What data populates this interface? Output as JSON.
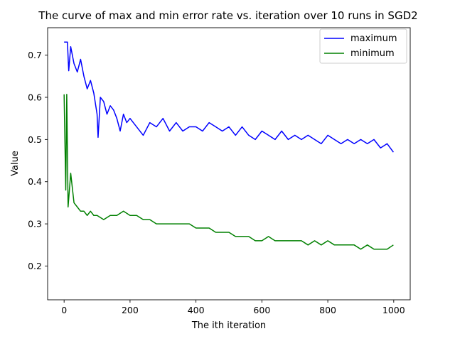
{
  "chart_data": {
    "type": "line",
    "title": "The curve of max and min error rate vs. iteration over 10 runs in SGD2",
    "xlabel": "The ith iteration",
    "ylabel": "Value",
    "xlim": [
      -50,
      1050
    ],
    "ylim": [
      0.12,
      0.765
    ],
    "x_ticks": [
      0,
      200,
      400,
      600,
      800,
      1000
    ],
    "y_ticks": [
      0.2,
      0.3,
      0.4,
      0.5,
      0.6,
      0.7
    ],
    "y_tick_labels": [
      "0.2",
      "0.3",
      "0.4",
      "0.5",
      "0.6",
      "0.7"
    ],
    "legend_position": "upper right",
    "grid": false,
    "series": [
      {
        "name": "maximum",
        "color": "#0000ff",
        "points": [
          [
            0,
            0.731
          ],
          [
            10,
            0.731
          ],
          [
            14,
            0.663
          ],
          [
            20,
            0.72
          ],
          [
            30,
            0.68
          ],
          [
            40,
            0.66
          ],
          [
            50,
            0.69
          ],
          [
            60,
            0.65
          ],
          [
            70,
            0.62
          ],
          [
            80,
            0.64
          ],
          [
            90,
            0.61
          ],
          [
            100,
            0.56
          ],
          [
            103,
            0.505
          ],
          [
            110,
            0.6
          ],
          [
            120,
            0.59
          ],
          [
            130,
            0.56
          ],
          [
            140,
            0.58
          ],
          [
            150,
            0.57
          ],
          [
            160,
            0.55
          ],
          [
            170,
            0.52
          ],
          [
            180,
            0.56
          ],
          [
            190,
            0.54
          ],
          [
            200,
            0.55
          ],
          [
            220,
            0.53
          ],
          [
            240,
            0.51
          ],
          [
            260,
            0.54
          ],
          [
            280,
            0.53
          ],
          [
            300,
            0.55
          ],
          [
            320,
            0.52
          ],
          [
            340,
            0.54
          ],
          [
            360,
            0.52
          ],
          [
            380,
            0.53
          ],
          [
            400,
            0.53
          ],
          [
            420,
            0.52
          ],
          [
            440,
            0.54
          ],
          [
            460,
            0.53
          ],
          [
            480,
            0.52
          ],
          [
            500,
            0.53
          ],
          [
            520,
            0.51
          ],
          [
            540,
            0.53
          ],
          [
            560,
            0.51
          ],
          [
            580,
            0.5
          ],
          [
            600,
            0.52
          ],
          [
            620,
            0.51
          ],
          [
            640,
            0.5
          ],
          [
            660,
            0.52
          ],
          [
            680,
            0.5
          ],
          [
            700,
            0.51
          ],
          [
            720,
            0.5
          ],
          [
            740,
            0.51
          ],
          [
            760,
            0.5
          ],
          [
            780,
            0.49
          ],
          [
            800,
            0.51
          ],
          [
            820,
            0.5
          ],
          [
            840,
            0.49
          ],
          [
            860,
            0.5
          ],
          [
            880,
            0.49
          ],
          [
            900,
            0.5
          ],
          [
            920,
            0.49
          ],
          [
            940,
            0.5
          ],
          [
            960,
            0.48
          ],
          [
            980,
            0.49
          ],
          [
            999,
            0.47
          ]
        ],
        "value_band": [
          0.36,
          0.731
        ]
      },
      {
        "name": "minimum",
        "color": "#008000",
        "points": [
          [
            0,
            0.607
          ],
          [
            5,
            0.38
          ],
          [
            8,
            0.607
          ],
          [
            12,
            0.34
          ],
          [
            20,
            0.42
          ],
          [
            30,
            0.35
          ],
          [
            40,
            0.34
          ],
          [
            50,
            0.33
          ],
          [
            60,
            0.33
          ],
          [
            70,
            0.32
          ],
          [
            80,
            0.33
          ],
          [
            90,
            0.32
          ],
          [
            100,
            0.32
          ],
          [
            120,
            0.31
          ],
          [
            140,
            0.32
          ],
          [
            160,
            0.32
          ],
          [
            180,
            0.33
          ],
          [
            200,
            0.32
          ],
          [
            220,
            0.32
          ],
          [
            240,
            0.31
          ],
          [
            260,
            0.31
          ],
          [
            280,
            0.3
          ],
          [
            300,
            0.3
          ],
          [
            320,
            0.3
          ],
          [
            340,
            0.3
          ],
          [
            360,
            0.3
          ],
          [
            380,
            0.3
          ],
          [
            400,
            0.29
          ],
          [
            420,
            0.29
          ],
          [
            440,
            0.29
          ],
          [
            460,
            0.28
          ],
          [
            480,
            0.28
          ],
          [
            500,
            0.28
          ],
          [
            520,
            0.27
          ],
          [
            540,
            0.27
          ],
          [
            560,
            0.27
          ],
          [
            580,
            0.26
          ],
          [
            600,
            0.26
          ],
          [
            620,
            0.27
          ],
          [
            640,
            0.26
          ],
          [
            660,
            0.26
          ],
          [
            680,
            0.26
          ],
          [
            700,
            0.26
          ],
          [
            720,
            0.26
          ],
          [
            740,
            0.25
          ],
          [
            760,
            0.26
          ],
          [
            780,
            0.25
          ],
          [
            800,
            0.26
          ],
          [
            820,
            0.25
          ],
          [
            840,
            0.25
          ],
          [
            860,
            0.25
          ],
          [
            880,
            0.25
          ],
          [
            900,
            0.24
          ],
          [
            920,
            0.25
          ],
          [
            940,
            0.24
          ],
          [
            960,
            0.24
          ],
          [
            980,
            0.24
          ],
          [
            999,
            0.25
          ]
        ],
        "value_band": [
          0.145,
          0.607
        ]
      }
    ]
  }
}
